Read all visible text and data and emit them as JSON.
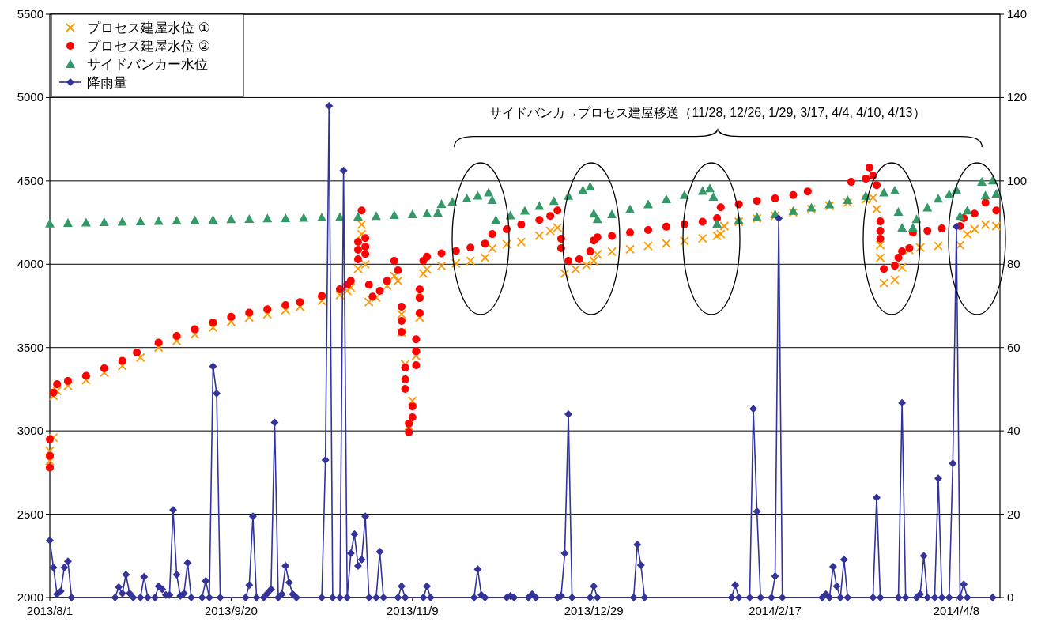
{
  "chart_data": {
    "type": "scatter",
    "xlim": [
      "2013-08-01",
      "2014-04-20"
    ],
    "xticks": [
      {
        "value": "2013-08-01",
        "label": "2013/8/1"
      },
      {
        "value": "2013-09-20",
        "label": "2013/9/20"
      },
      {
        "value": "2013-11-09",
        "label": "2013/11/9"
      },
      {
        "value": "2013-12-29",
        "label": "2013/12/29"
      },
      {
        "value": "2014-02-17",
        "label": "2014/2/17"
      },
      {
        "value": "2014-04-08",
        "label": "2014/4/8"
      }
    ],
    "ylim": [
      2000,
      5500
    ],
    "yticks": [
      2000,
      2500,
      3000,
      3500,
      4000,
      4500,
      5000,
      5500
    ],
    "y2lim": [
      0,
      140
    ],
    "y2ticks": [
      0,
      20,
      40,
      60,
      80,
      100,
      120,
      140
    ],
    "grid": "y",
    "legend": "top left",
    "annotations": [
      "サイドバンカ→プロセス建屋移送（11/28, 12/26, 1/29, 3/17, 4/4, 4/10, 4/13）"
    ],
    "series": [
      {
        "name": "プロセス建屋水位 ①",
        "marker": "cross",
        "color": "#ff9900",
        "x": [
          "2013-08-01",
          "2013-08-01",
          "2013-08-02",
          "2013-08-02",
          "2013-08-03",
          "2013-08-06",
          "2013-08-11",
          "2013-08-16",
          "2013-08-21",
          "2013-08-26",
          "2013-08-31",
          "2013-09-05",
          "2013-09-10",
          "2013-09-15",
          "2013-09-20",
          "2013-09-25",
          "2013-09-30",
          "2013-10-05",
          "2013-10-09",
          "2013-10-15",
          "2013-10-20",
          "2013-10-22",
          "2013-10-23",
          "2013-10-25",
          "2013-10-26",
          "2013-10-26",
          "2013-10-27",
          "2013-10-28",
          "2013-10-30",
          "2013-11-02",
          "2013-11-04",
          "2013-11-05",
          "2013-11-06",
          "2013-11-06",
          "2013-11-07",
          "2013-11-08",
          "2013-11-09",
          "2013-11-10",
          "2013-11-11",
          "2013-11-11",
          "2013-11-12",
          "2013-11-13",
          "2013-11-17",
          "2013-11-21",
          "2013-11-25",
          "2013-11-29",
          "2013-12-01",
          "2013-12-05",
          "2013-12-09",
          "2013-12-14",
          "2013-12-17",
          "2013-12-19",
          "2013-12-21",
          "2013-12-24",
          "2013-12-27",
          "2013-12-29",
          "2013-12-30",
          "2014-01-03",
          "2014-01-08",
          "2014-01-13",
          "2014-01-18",
          "2014-01-23",
          "2014-01-28",
          "2014-02-01",
          "2014-02-02",
          "2014-02-03",
          "2014-02-07",
          "2014-02-12",
          "2014-02-17",
          "2014-02-22",
          "2014-02-27",
          "2014-03-04",
          "2014-03-09",
          "2014-03-14",
          "2014-03-16",
          "2014-03-17",
          "2014-03-18",
          "2014-03-18",
          "2014-03-19",
          "2014-03-22",
          "2014-03-24",
          "2014-03-26",
          "2014-03-29",
          "2014-04-03",
          "2014-04-09",
          "2014-04-11",
          "2014-04-13",
          "2014-04-16",
          "2014-04-19"
        ],
        "values": [
          2820,
          2880,
          2960,
          3210,
          3240,
          3270,
          3305,
          3350,
          3390,
          3440,
          3500,
          3540,
          3580,
          3620,
          3655,
          3680,
          3700,
          3725,
          3745,
          3780,
          3815,
          3840,
          3860,
          3972,
          4238,
          4180,
          4000,
          3773,
          3800,
          3870,
          3930,
          3900,
          3700,
          3590,
          3400,
          3030,
          3180,
          3450,
          3680,
          3830,
          3944,
          3970,
          3990,
          4005,
          4020,
          4039,
          4096,
          4120,
          4134,
          4172,
          4200,
          4219,
          3944,
          3970,
          3995,
          4020,
          4060,
          4075,
          4090,
          4110,
          4125,
          4140,
          4155,
          4170,
          4181,
          4229,
          4255,
          4275,
          4290,
          4310,
          4330,
          4350,
          4370,
          4390,
          4399,
          4330,
          4115,
          4039,
          3887,
          3906,
          3982,
          4086,
          4100,
          4110,
          4115,
          4180,
          4210,
          4238,
          4229
        ]
      },
      {
        "name": "プロセス建屋水位 ②",
        "marker": "circle",
        "color": "#ff0000",
        "x": [
          "2013-08-01",
          "2013-08-01",
          "2013-08-01",
          "2013-08-02",
          "2013-08-03",
          "2013-08-06",
          "2013-08-11",
          "2013-08-16",
          "2013-08-21",
          "2013-08-25",
          "2013-08-31",
          "2013-09-05",
          "2013-09-10",
          "2013-09-15",
          "2013-09-20",
          "2013-09-25",
          "2013-09-30",
          "2013-10-05",
          "2013-10-09",
          "2013-10-15",
          "2013-10-20",
          "2013-10-22",
          "2013-10-23",
          "2013-10-25",
          "2013-10-25",
          "2013-10-25",
          "2013-10-26",
          "2013-10-27",
          "2013-10-27",
          "2013-10-27",
          "2013-10-28",
          "2013-10-29",
          "2013-10-31",
          "2013-11-02",
          "2013-11-04",
          "2013-11-05",
          "2013-11-06",
          "2013-11-06",
          "2013-11-06",
          "2013-11-07",
          "2013-11-07",
          "2013-11-07",
          "2013-11-08",
          "2013-11-08",
          "2013-11-09",
          "2013-11-09",
          "2013-11-10",
          "2013-11-10",
          "2013-11-10",
          "2013-11-11",
          "2013-11-11",
          "2013-11-11",
          "2013-11-12",
          "2013-11-13",
          "2013-11-17",
          "2013-11-21",
          "2013-11-25",
          "2013-11-29",
          "2013-12-01",
          "2013-12-05",
          "2013-12-09",
          "2013-12-14",
          "2013-12-17",
          "2013-12-19",
          "2013-12-20",
          "2013-12-20",
          "2013-12-22",
          "2013-12-25",
          "2013-12-28",
          "2013-12-29",
          "2013-12-30",
          "2014-01-03",
          "2014-01-08",
          "2014-01-13",
          "2014-01-18",
          "2014-01-23",
          "2014-01-28",
          "2014-02-01",
          "2014-02-02",
          "2014-02-07",
          "2014-02-12",
          "2014-02-17",
          "2014-02-22",
          "2014-02-26",
          "2014-03-10",
          "2014-03-14",
          "2014-03-15",
          "2014-03-16",
          "2014-03-17",
          "2014-03-18",
          "2014-03-18",
          "2014-03-18",
          "2014-03-19",
          "2014-03-22",
          "2014-03-23",
          "2014-03-24",
          "2014-03-26",
          "2014-03-27",
          "2014-03-31",
          "2014-04-04",
          "2014-04-09",
          "2014-04-10",
          "2014-04-13",
          "2014-04-16",
          "2014-04-19"
        ],
        "values": [
          2780,
          2850,
          2950,
          3230,
          3280,
          3300,
          3330,
          3375,
          3420,
          3470,
          3530,
          3570,
          3610,
          3650,
          3685,
          3710,
          3730,
          3755,
          3773,
          3810,
          3850,
          3877,
          3900,
          4030,
          4087,
          4134,
          4323,
          4062,
          4105,
          4157,
          3877,
          3806,
          3840,
          3900,
          4020,
          3963,
          3745,
          3660,
          3593,
          3380,
          3309,
          3252,
          3043,
          2991,
          3081,
          3147,
          3394,
          3479,
          3550,
          3707,
          3797,
          3849,
          4020,
          4045,
          4065,
          4080,
          4100,
          4124,
          4181,
          4210,
          4238,
          4266,
          4290,
          4323,
          4153,
          4096,
          4020,
          4030,
          4077,
          4143,
          4162,
          4170,
          4190,
          4205,
          4225,
          4240,
          4255,
          4276,
          4342,
          4360,
          4380,
          4395,
          4415,
          4437,
          4494,
          4513,
          4580,
          4532,
          4475,
          4257,
          4200,
          4153,
          3972,
          3991,
          4039,
          4077,
          4096,
          4190,
          4200,
          4215,
          4229,
          4276,
          4304,
          4370,
          4323
        ]
      },
      {
        "name": "サイドバンカー水位",
        "marker": "triangle",
        "color": "#339966",
        "x": [
          "2013-08-01",
          "2013-08-06",
          "2013-08-11",
          "2013-08-16",
          "2013-08-21",
          "2013-08-26",
          "2013-08-31",
          "2013-09-05",
          "2013-09-10",
          "2013-09-15",
          "2013-09-20",
          "2013-09-25",
          "2013-09-30",
          "2013-10-05",
          "2013-10-10",
          "2013-10-15",
          "2013-10-20",
          "2013-10-25",
          "2013-10-30",
          "2013-11-04",
          "2013-11-09",
          "2013-11-13",
          "2013-11-16",
          "2013-11-17",
          "2013-11-20",
          "2013-11-24",
          "2013-11-27",
          "2013-11-30",
          "2013-12-01",
          "2013-12-02",
          "2013-12-06",
          "2013-12-10",
          "2013-12-14",
          "2013-12-18",
          "2013-12-22",
          "2013-12-26",
          "2013-12-28",
          "2013-12-29",
          "2013-12-30",
          "2014-01-03",
          "2014-01-08",
          "2014-01-13",
          "2014-01-18",
          "2014-01-23",
          "2014-01-28",
          "2014-01-30",
          "2014-01-31",
          "2014-02-01",
          "2014-02-07",
          "2014-02-12",
          "2014-02-17",
          "2014-02-22",
          "2014-02-27",
          "2014-03-04",
          "2014-03-09",
          "2014-03-14",
          "2014-03-19",
          "2014-03-22",
          "2014-03-23",
          "2014-03-24",
          "2014-03-27",
          "2014-03-28",
          "2014-03-31",
          "2014-04-03",
          "2014-04-06",
          "2014-04-08",
          "2014-04-09",
          "2014-04-11",
          "2014-04-15",
          "2014-04-16",
          "2014-04-18",
          "2014-04-19"
        ],
        "values": [
          4245,
          4248,
          4250,
          4253,
          4255,
          4258,
          4260,
          4262,
          4265,
          4267,
          4270,
          4272,
          4275,
          4277,
          4279,
          4281,
          4283,
          4286,
          4290,
          4295,
          4300,
          4305,
          4310,
          4362,
          4375,
          4395,
          4412,
          4430,
          4385,
          4266,
          4293,
          4322,
          4350,
          4380,
          4410,
          4445,
          4466,
          4304,
          4271,
          4300,
          4330,
          4360,
          4390,
          4415,
          4440,
          4455,
          4404,
          4243,
          4265,
          4283,
          4300,
          4320,
          4340,
          4360,
          4385,
          4410,
          4430,
          4442,
          4314,
          4219,
          4219,
          4271,
          4340,
          4394,
          4420,
          4447,
          4290,
          4323,
          4494,
          4413,
          4503,
          4423
        ]
      },
      {
        "name": "降雨量",
        "type": "line",
        "axis": "y2",
        "marker": "diamond",
        "color": "#333399",
        "x": [
          "2013-08-01",
          "2013-08-02",
          "2013-08-03",
          "2013-08-04",
          "2013-08-05",
          "2013-08-06",
          "2013-08-07",
          "2013-08-19",
          "2013-08-20",
          "2013-08-21",
          "2013-08-22",
          "2013-08-23",
          "2013-08-24",
          "2013-08-26",
          "2013-08-27",
          "2013-08-28",
          "2013-08-30",
          "2013-08-31",
          "2013-09-01",
          "2013-09-02",
          "2013-09-03",
          "2013-09-04",
          "2013-09-05",
          "2013-09-06",
          "2013-09-07",
          "2013-09-08",
          "2013-09-09",
          "2013-09-12",
          "2013-09-13",
          "2013-09-14",
          "2013-09-15",
          "2013-09-16",
          "2013-09-17",
          "2013-09-24",
          "2013-09-25",
          "2013-09-26",
          "2013-09-27",
          "2013-09-29",
          "2013-09-30",
          "2013-10-01",
          "2013-10-02",
          "2013-10-03",
          "2013-10-04",
          "2013-10-05",
          "2013-10-06",
          "2013-10-07",
          "2013-10-08",
          "2013-10-15",
          "2013-10-16",
          "2013-10-17",
          "2013-10-18",
          "2013-10-20",
          "2013-10-21",
          "2013-10-22",
          "2013-10-23",
          "2013-10-24",
          "2013-10-25",
          "2013-10-26",
          "2013-10-27",
          "2013-10-28",
          "2013-10-30",
          "2013-10-31",
          "2013-11-01",
          "2013-11-05",
          "2013-11-06",
          "2013-11-07",
          "2013-11-12",
          "2013-11-13",
          "2013-11-14",
          "2013-11-26",
          "2013-11-27",
          "2013-11-28",
          "2013-11-29",
          "2013-12-05",
          "2013-12-06",
          "2013-12-07",
          "2013-12-11",
          "2013-12-12",
          "2013-12-13",
          "2013-12-19",
          "2013-12-20",
          "2013-12-21",
          "2013-12-22",
          "2013-12-23",
          "2013-12-28",
          "2013-12-29",
          "2013-12-30",
          "2014-01-09",
          "2014-01-10",
          "2014-01-11",
          "2014-01-12",
          "2014-02-05",
          "2014-02-06",
          "2014-02-07",
          "2014-02-10",
          "2014-02-11",
          "2014-02-12",
          "2014-02-13",
          "2014-02-16",
          "2014-02-17",
          "2014-02-18",
          "2014-02-19",
          "2014-03-02",
          "2014-03-03",
          "2014-03-04",
          "2014-03-05",
          "2014-03-06",
          "2014-03-07",
          "2014-03-08",
          "2014-03-09",
          "2014-03-16",
          "2014-03-17",
          "2014-03-18",
          "2014-03-23",
          "2014-03-24",
          "2014-03-25",
          "2014-03-28",
          "2014-03-29",
          "2014-03-30",
          "2014-03-31",
          "2014-04-02",
          "2014-04-03",
          "2014-04-04",
          "2014-04-06",
          "2014-04-07",
          "2014-04-08",
          "2014-04-09",
          "2014-04-10",
          "2014-04-11",
          "2014-04-18"
        ],
        "values": [
          13.7,
          7.2,
          0.8,
          1.5,
          7.2,
          8.7,
          0,
          0,
          2.5,
          1,
          5.5,
          1,
          0,
          0,
          5,
          0,
          0,
          2.7,
          2,
          0.6,
          0.6,
          21,
          5.5,
          0.4,
          1,
          8.3,
          0,
          0,
          4,
          0,
          55.5,
          49,
          0,
          0,
          3,
          19.5,
          0,
          0,
          1,
          2,
          42,
          0,
          0.8,
          7.6,
          3.6,
          0.8,
          0,
          0,
          33,
          118,
          0,
          0,
          102.5,
          0,
          10.6,
          15.2,
          7.6,
          9.1,
          19.5,
          0,
          0,
          11,
          0,
          0,
          2.7,
          0,
          0,
          2.7,
          0,
          0,
          6.8,
          0.6,
          0,
          0,
          0.4,
          0,
          0,
          0.8,
          0,
          0,
          0.4,
          10.6,
          44,
          0,
          0,
          2.7,
          0,
          0,
          12.7,
          7.8,
          0,
          0,
          3,
          0,
          0,
          45.3,
          20.7,
          0,
          0,
          5.1,
          91,
          0,
          0,
          0.8,
          0,
          7.4,
          2.7,
          0,
          9.1,
          0,
          0,
          24,
          0,
          0,
          46.7,
          0,
          0,
          0.8,
          10,
          0,
          0,
          28.6,
          0,
          0,
          32.2,
          89,
          0,
          3.2,
          0,
          0
        ]
      }
    ]
  }
}
